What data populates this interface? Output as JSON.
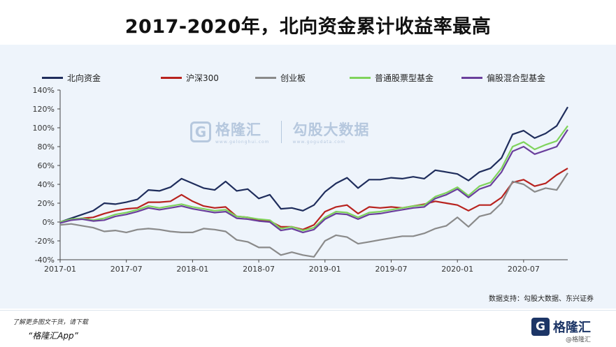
{
  "title": "2017-2020年，北向资金累计收益率最高",
  "source": "数据支持：勾股大数据、东兴证券",
  "watermark": {
    "logo_letter": "G",
    "name": "格隆汇",
    "url": "www.gelonghui.com",
    "name2": "勾股大数据",
    "url2": "www.gogudata.com"
  },
  "footer": {
    "promo_line1": "了解更多图文干货，请下载",
    "promo_line2": "“格隆汇App”",
    "brand_logo": "G",
    "brand_name": "格隆汇",
    "brand_url": "@格隆汇"
  },
  "colors": {
    "north": "#1f2d5c",
    "hs300": "#b8221e",
    "gem": "#8a8a8a",
    "equity_fund": "#7fd35c",
    "mixed_fund": "#6a3f9c"
  },
  "chart_data": {
    "type": "line",
    "title": "2017-2020年，北向资金累计收益率最高",
    "xlabel": "",
    "ylabel": "",
    "ylim": [
      -40,
      140
    ],
    "yticks": [
      -40,
      -20,
      0,
      20,
      40,
      60,
      80,
      100,
      120,
      140
    ],
    "ytick_labels": [
      "-40%",
      "-20%",
      "0%",
      "20%",
      "40%",
      "60%",
      "80%",
      "100%",
      "120%",
      "140%"
    ],
    "xlim": [
      0,
      46
    ],
    "xticks": [
      0,
      6,
      12,
      18,
      24,
      30,
      36,
      42
    ],
    "xtick_labels": [
      "2017-01",
      "2017-07",
      "2018-01",
      "2018-07",
      "2019-01",
      "2019-07",
      "2020-01",
      "2020-07"
    ],
    "grid": false,
    "legend_position": "top",
    "x": [
      0,
      1,
      2,
      3,
      4,
      5,
      6,
      7,
      8,
      9,
      10,
      11,
      12,
      13,
      14,
      15,
      16,
      17,
      18,
      19,
      20,
      21,
      22,
      23,
      24,
      25,
      26,
      27,
      28,
      29,
      30,
      31,
      32,
      33,
      34,
      35,
      36,
      37,
      38,
      39,
      40,
      41,
      42,
      43,
      44,
      45,
      46
    ],
    "series": [
      {
        "name": "北向资金",
        "color_key": "north",
        "values": [
          0,
          4,
          8,
          12,
          20,
          19,
          21,
          24,
          34,
          33,
          37,
          46,
          41,
          36,
          34,
          43,
          33,
          35,
          25,
          29,
          14,
          15,
          12,
          18,
          32,
          41,
          47,
          36,
          45,
          45,
          47,
          46,
          48,
          46,
          55,
          53,
          51,
          44,
          53,
          57,
          68,
          93,
          97,
          89,
          94,
          102,
          122
        ]
      },
      {
        "name": "沪深300",
        "color_key": "hs300",
        "values": [
          0,
          2,
          4,
          5,
          9,
          12,
          14,
          15,
          21,
          21,
          22,
          29,
          22,
          17,
          15,
          16,
          6,
          5,
          2,
          1,
          -5,
          -5,
          -8,
          -3,
          11,
          16,
          18,
          9,
          16,
          15,
          16,
          15,
          17,
          19,
          22,
          20,
          18,
          12,
          18,
          18,
          26,
          42,
          45,
          38,
          41,
          50,
          57
        ]
      },
      {
        "name": "创业板",
        "color_key": "gem",
        "values": [
          -3,
          -2,
          -4,
          -6,
          -10,
          -9,
          -11,
          -8,
          -7,
          -8,
          -10,
          -11,
          -11,
          -7,
          -8,
          -10,
          -19,
          -21,
          -27,
          -27,
          -35,
          -32,
          -35,
          -37,
          -20,
          -14,
          -16,
          -23,
          -21,
          -19,
          -17,
          -15,
          -15,
          -12,
          -7,
          -4,
          5,
          -5,
          6,
          9,
          20,
          43,
          40,
          32,
          36,
          34,
          52
        ]
      },
      {
        "name": "普通股票型基金",
        "color_key": "equity_fund",
        "values": [
          0,
          3,
          4,
          2,
          4,
          8,
          10,
          13,
          17,
          15,
          17,
          19,
          16,
          14,
          12,
          13,
          6,
          5,
          3,
          2,
          -7,
          -5,
          -9,
          -6,
          5,
          11,
          10,
          5,
          10,
          11,
          13,
          15,
          17,
          18,
          27,
          31,
          37,
          28,
          38,
          42,
          57,
          80,
          85,
          77,
          82,
          86,
          102
        ]
      },
      {
        "name": "偏股混合型基金",
        "color_key": "mixed_fund",
        "values": [
          -1,
          2,
          3,
          1,
          2,
          6,
          8,
          11,
          15,
          13,
          15,
          17,
          14,
          12,
          10,
          11,
          4,
          3,
          1,
          0,
          -9,
          -7,
          -11,
          -8,
          3,
          9,
          8,
          3,
          8,
          9,
          11,
          13,
          15,
          16,
          25,
          29,
          35,
          26,
          35,
          39,
          53,
          75,
          80,
          72,
          76,
          80,
          98
        ]
      }
    ]
  }
}
